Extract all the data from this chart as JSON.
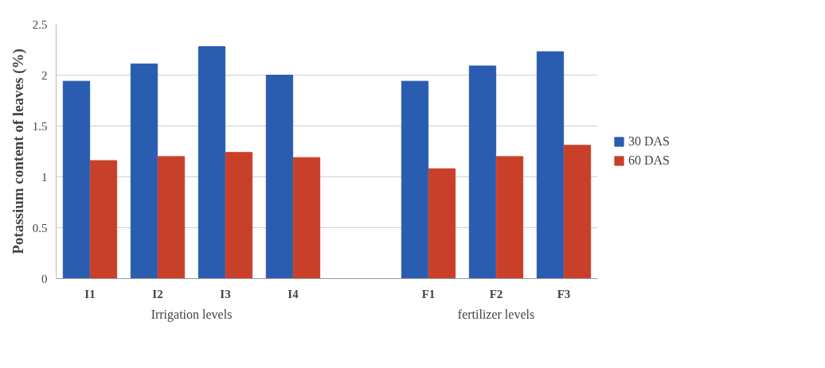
{
  "chart_data": {
    "type": "bar",
    "ylabel": "Potassium content of leaves (%)",
    "categories": [
      "I1",
      "I2",
      "I3",
      "I4",
      null,
      "F1",
      "F2",
      "F3"
    ],
    "series": [
      {
        "name": "30 DAS",
        "color": "#2a5db0",
        "values": [
          1.94,
          2.11,
          2.28,
          2.0,
          null,
          1.94,
          2.09,
          2.23
        ]
      },
      {
        "name": "60 DAS",
        "color": "#c8402a",
        "values": [
          1.16,
          1.2,
          1.24,
          1.19,
          null,
          1.08,
          1.2,
          1.31
        ]
      }
    ],
    "ylim": [
      0,
      2.5
    ],
    "yticks": [
      0,
      0.5,
      1,
      1.5,
      2,
      2.5
    ],
    "grid": "y",
    "legend": "right",
    "annotations": [
      "Irrigation levels",
      "fertilizer levels"
    ]
  }
}
